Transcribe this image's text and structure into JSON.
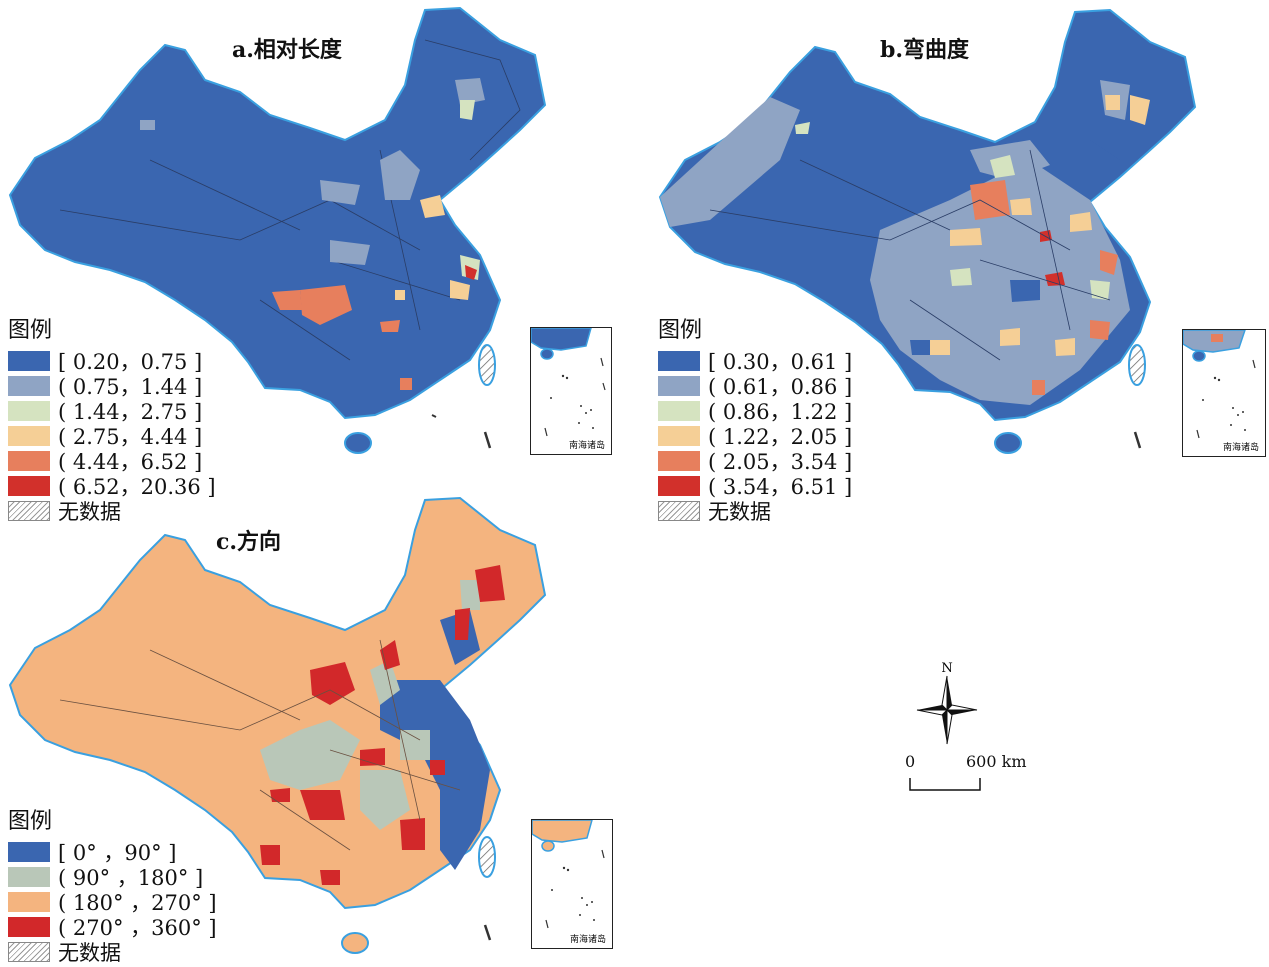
{
  "maps": [
    {
      "id": "a",
      "title": "a.相对长度",
      "legend_title": "图例",
      "classes": [
        {
          "label": "[ 0.20，0.75 ]",
          "color": "#3a66b0"
        },
        {
          "label": "( 0.75，1.44 ]",
          "color": "#8fa4c4"
        },
        {
          "label": "( 1.44，2.75 ]",
          "color": "#d5e3c0"
        },
        {
          "label": "( 2.75，4.44 ]",
          "color": "#f5cf96"
        },
        {
          "label": "( 4.44，6.52 ]",
          "color": "#e77f5d"
        },
        {
          "label": "( 6.52，20.36 ]",
          "color": "#d2302b"
        }
      ],
      "no_data_label": "无数据"
    },
    {
      "id": "b",
      "title": "b.弯曲度",
      "legend_title": "图例",
      "classes": [
        {
          "label": "[ 0.30，0.61 ]",
          "color": "#3a66b0"
        },
        {
          "label": "( 0.61，0.86 ]",
          "color": "#8fa4c4"
        },
        {
          "label": "( 0.86，1.22 ]",
          "color": "#d5e3c0"
        },
        {
          "label": "( 1.22，2.05 ]",
          "color": "#f5cf96"
        },
        {
          "label": "( 2.05，3.54 ]",
          "color": "#e77f5d"
        },
        {
          "label": "( 3.54，6.51 ]",
          "color": "#d2302b"
        }
      ],
      "no_data_label": "无数据"
    },
    {
      "id": "c",
      "title": "c.方向",
      "legend_title": "图例",
      "classes": [
        {
          "label": "[ 0° ，90° ]",
          "color": "#3a66b0"
        },
        {
          "label": "( 90° ，180° ]",
          "color": "#b9c7b8"
        },
        {
          "label": "( 180° ，270° ]",
          "color": "#f4b47f"
        },
        {
          "label": "( 270° ，360° ]",
          "color": "#d2282a"
        }
      ],
      "no_data_label": "无数据"
    }
  ],
  "inset_label": "南海诸岛",
  "compass": {
    "north_label": "N"
  },
  "scale_bar": {
    "start_label": "0",
    "end_label": "600 km"
  },
  "colors": {
    "coast": "#3aa0e0",
    "boundary": "#3b3b3b"
  }
}
